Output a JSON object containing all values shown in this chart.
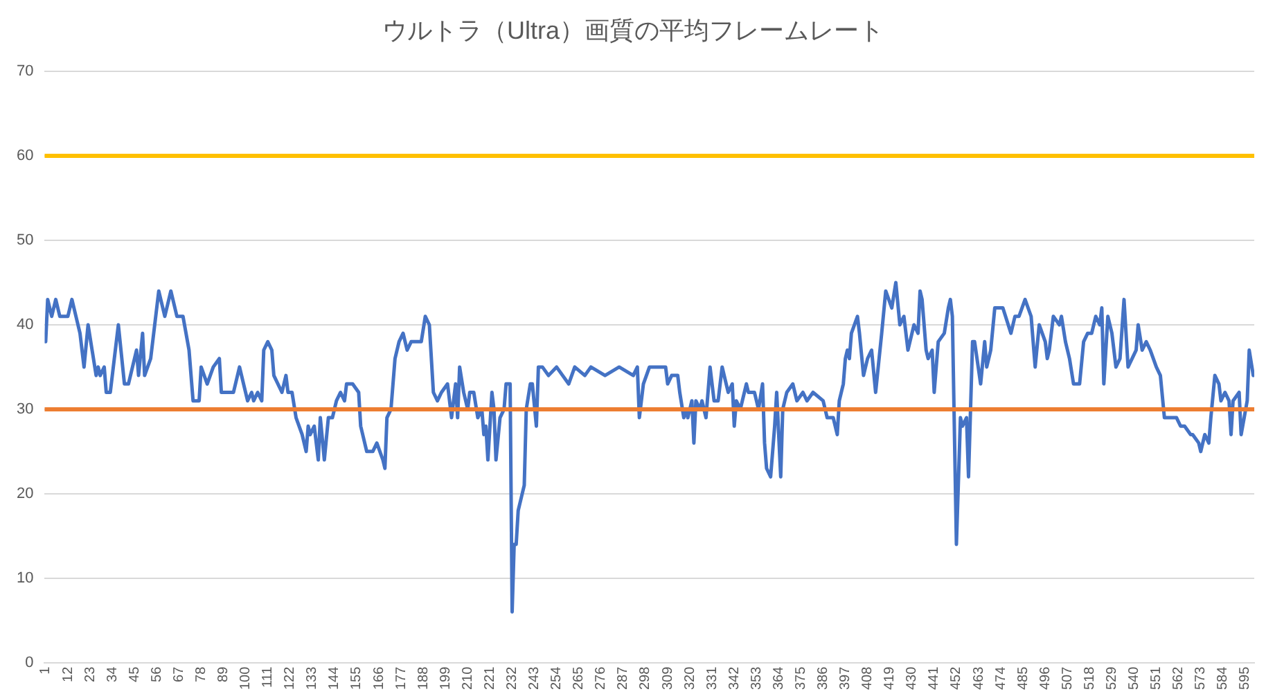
{
  "chart_data": {
    "type": "line",
    "title": "ウルトラ（Ultra）画質の平均フレームレート",
    "x": [
      1,
      2,
      4,
      6,
      8,
      12,
      14,
      16,
      18,
      20,
      22,
      24,
      26,
      27,
      28,
      30,
      31,
      33,
      37,
      40,
      42,
      46,
      47,
      49,
      50,
      53,
      57,
      60,
      63,
      66,
      69,
      72,
      74,
      77,
      78,
      81,
      84,
      87,
      88,
      94,
      97,
      99,
      101,
      103,
      104,
      106,
      108,
      109,
      111,
      113,
      114,
      118,
      120,
      121,
      123,
      125,
      128,
      130,
      131,
      132,
      134,
      136,
      137,
      139,
      141,
      143,
      145,
      147,
      149,
      150,
      153,
      156,
      157,
      160,
      163,
      165,
      168,
      169,
      170,
      172,
      174,
      176,
      178,
      180,
      182,
      184,
      187,
      189,
      191,
      193,
      195,
      197,
      200,
      202,
      204,
      205,
      206,
      208,
      210,
      211,
      213,
      215,
      217,
      218,
      219,
      220,
      222,
      223,
      224,
      226,
      228,
      229,
      231,
      232,
      233,
      234,
      235,
      237,
      238,
      239,
      241,
      242,
      244,
      245,
      247,
      250,
      254,
      257,
      260,
      263,
      268,
      271,
      278,
      285,
      292,
      294,
      295,
      297,
      300,
      308,
      309,
      311,
      314,
      315,
      317,
      318,
      319,
      321,
      322,
      323,
      325,
      326,
      328,
      330,
      332,
      334,
      336,
      338,
      339,
      341,
      342,
      343,
      345,
      346,
      348,
      349,
      352,
      353,
      354,
      356,
      357,
      358,
      360,
      361,
      362,
      363,
      365,
      366,
      368,
      371,
      373,
      376,
      378,
      381,
      386,
      388,
      389,
      391,
      393,
      394,
      396,
      397,
      398,
      399,
      400,
      403,
      404,
      406,
      408,
      410,
      412,
      415,
      417,
      420,
      422,
      424,
      426,
      428,
      431,
      433,
      434,
      435,
      437,
      438,
      440,
      441,
      443,
      446,
      448,
      449,
      450,
      452,
      454,
      455,
      457,
      458,
      460,
      461,
      464,
      466,
      467,
      469,
      471,
      475,
      479,
      481,
      483,
      486,
      489,
      491,
      493,
      496,
      497,
      498,
      500,
      503,
      504,
      506,
      508,
      510,
      513,
      515,
      517,
      519,
      521,
      523,
      524,
      525,
      527,
      529,
      531,
      533,
      535,
      537,
      541,
      542,
      544,
      546,
      548,
      551,
      553,
      555,
      558,
      560,
      561,
      563,
      565,
      568,
      569,
      572,
      573,
      575,
      577,
      578,
      580,
      582,
      583,
      585,
      587,
      588,
      589,
      592,
      593,
      596,
      597,
      599
    ],
    "series": [
      {
        "color": "#4472c4",
        "values": [
          38,
          43,
          41,
          43,
          41,
          41,
          43,
          41,
          39,
          35,
          40,
          37,
          34,
          35,
          34,
          35,
          32,
          32,
          40,
          33,
          33,
          37,
          34,
          39,
          34,
          36,
          44,
          41,
          44,
          41,
          41,
          37,
          31,
          31,
          35,
          33,
          35,
          36,
          32,
          32,
          35,
          33,
          31,
          32,
          31,
          32,
          31,
          37,
          38,
          37,
          34,
          32,
          34,
          32,
          32,
          29,
          27,
          25,
          28,
          27,
          28,
          24,
          29,
          24,
          29,
          29,
          31,
          32,
          31,
          33,
          33,
          32,
          28,
          25,
          25,
          26,
          24,
          23,
          29,
          30,
          36,
          38,
          39,
          37,
          38,
          38,
          38,
          41,
          40,
          32,
          31,
          32,
          33,
          29,
          33,
          29,
          35,
          32,
          30,
          32,
          32,
          29,
          30,
          27,
          28,
          24,
          32,
          30,
          24,
          29,
          30,
          33,
          33,
          6,
          14,
          14,
          18,
          20,
          21,
          30,
          33,
          33,
          28,
          35,
          35,
          34,
          35,
          34,
          33,
          35,
          34,
          35,
          34,
          35,
          34,
          35,
          29,
          33,
          35,
          35,
          33,
          34,
          34,
          32,
          29,
          30,
          29,
          31,
          26,
          31,
          30,
          31,
          29,
          35,
          31,
          31,
          35,
          33,
          32,
          33,
          28,
          31,
          30,
          31,
          33,
          32,
          32,
          31,
          30,
          33,
          26,
          23,
          22,
          25,
          28,
          32,
          22,
          30,
          32,
          33,
          31,
          32,
          31,
          32,
          31,
          29,
          29,
          29,
          27,
          31,
          33,
          36,
          37,
          36,
          39,
          41,
          39,
          34,
          36,
          37,
          32,
          39,
          44,
          42,
          45,
          40,
          41,
          37,
          40,
          39,
          44,
          43,
          37,
          36,
          37,
          32,
          38,
          39,
          42,
          43,
          41,
          14,
          29,
          28,
          29,
          22,
          38,
          38,
          33,
          38,
          35,
          37,
          42,
          42,
          39,
          41,
          41,
          43,
          41,
          35,
          40,
          38,
          36,
          37,
          41,
          40,
          41,
          38,
          36,
          33,
          33,
          38,
          39,
          39,
          41,
          40,
          42,
          33,
          41,
          39,
          35,
          36,
          43,
          35,
          37,
          40,
          37,
          38,
          37,
          35,
          34,
          29,
          29,
          29,
          29,
          28,
          28,
          27,
          27,
          26,
          25,
          27,
          26,
          29,
          34,
          33,
          31,
          32,
          31,
          27,
          31,
          32,
          27,
          31,
          37,
          34
        ]
      }
    ],
    "xlim": [
      0.5,
      599.5
    ],
    "xticks": [
      1,
      12,
      23,
      34,
      45,
      56,
      67,
      78,
      89,
      100,
      111,
      122,
      133,
      144,
      155,
      166,
      177,
      188,
      199,
      210,
      221,
      232,
      243,
      254,
      265,
      276,
      287,
      298,
      309,
      320,
      331,
      342,
      353,
      364,
      375,
      386,
      397,
      408,
      419,
      430,
      441,
      452,
      463,
      474,
      485,
      496,
      507,
      518,
      529,
      540,
      551,
      562,
      573,
      584,
      595
    ],
    "ylim": [
      0,
      70
    ],
    "yticks": [
      0,
      10,
      20,
      30,
      40,
      50,
      60,
      70
    ],
    "ref_lines": [
      {
        "axis": "y",
        "value": 60,
        "color": "#ffc000"
      },
      {
        "axis": "y",
        "value": 30,
        "color": "#ed7d31"
      }
    ],
    "grid": "y",
    "legend": false,
    "marker": "none",
    "line_style": "solid"
  }
}
